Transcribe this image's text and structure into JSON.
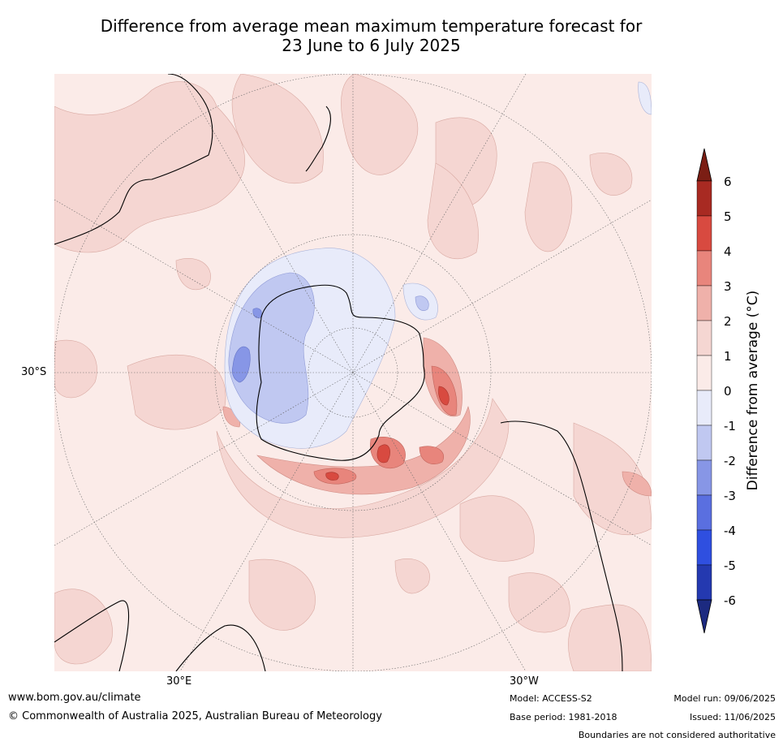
{
  "title": {
    "line1": "Difference from average mean maximum temperature forecast for",
    "line2": "23 June to 6 July 2025"
  },
  "map": {
    "projection": "south polar stereographic",
    "lat_label": "30°S",
    "lon_labels": [
      "30°E",
      "30°W"
    ]
  },
  "colorbar": {
    "label": "Difference from average (°C)",
    "ticks": [
      "6",
      "5",
      "4",
      "3",
      "2",
      "1",
      "0",
      "-1",
      "-2",
      "-3",
      "-4",
      "-5",
      "-6"
    ],
    "colors": {
      "above_6": "#7b1e14",
      "5_6": "#a82a22",
      "4_5": "#d84a40",
      "3_4": "#e8857c",
      "2_3": "#efb1aa",
      "1_2": "#f5d6d2",
      "0_1": "#fbebe8",
      "m1_0": "#e8ebfa",
      "m2_m1": "#c0c8f1",
      "m3_m2": "#8796e6",
      "m4_m3": "#5a6fe0",
      "m5_m4": "#2f4fe0",
      "m6_m5": "#2439b0",
      "below_m6": "#1c2a80"
    }
  },
  "footer": {
    "website": "www.bom.gov.au/climate",
    "copyright": "© Commonwealth of Australia 2025, Australian Bureau of Meteorology",
    "model": "Model: ACCESS-S2",
    "base_period": "Base period: 1981-2018",
    "model_run": "Model run: 09/06/2025",
    "issued": "Issued: 11/06/2025",
    "disclaimer": "Boundaries are not considered authoritative"
  }
}
